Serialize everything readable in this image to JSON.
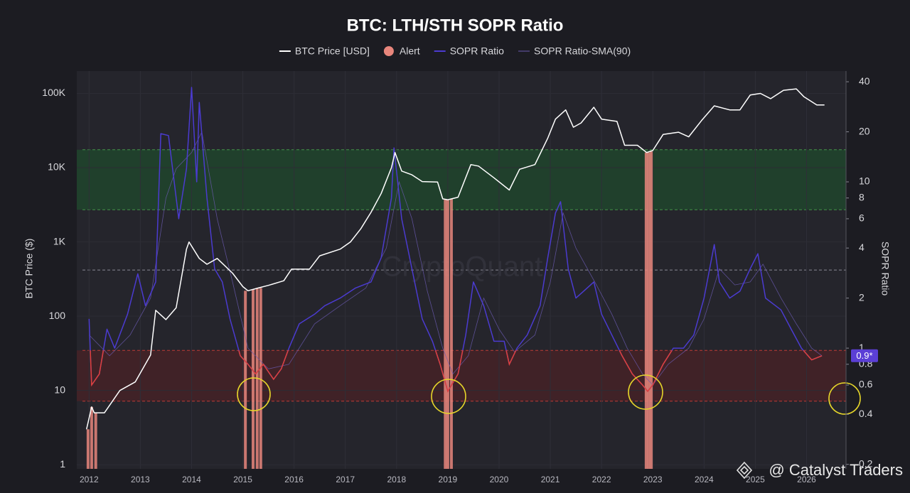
{
  "chart_data": {
    "type": "line",
    "title": "BTC: LTH/STH SOPR Ratio",
    "y_label": "BTC Price ($)",
    "y2_label": "SOPR Ratio",
    "watermark": "CryptoQuant",
    "credit": "@ Catalyst Traders",
    "legend": "top",
    "log_y": true,
    "log_y2": true,
    "grid": true,
    "xlim": [
      2011.76,
      2026.77
    ],
    "xticks": [
      2012,
      2013,
      2014,
      2015,
      2016,
      2017,
      2018,
      2019,
      2020,
      2021,
      2022,
      2023,
      2024,
      2025,
      2026
    ],
    "ylim": [
      0.88,
      200000
    ],
    "yticks": [
      1,
      10,
      100,
      {
        "value": 1000,
        "label": "1K"
      },
      {
        "value": 10000,
        "label": "10K"
      },
      {
        "value": 100000,
        "label": "100K"
      }
    ],
    "y2lim": [
      0.188,
      46.4
    ],
    "y2ticks": [
      0.2,
      0.4,
      0.6,
      0.8,
      1,
      2,
      4,
      6,
      8,
      10,
      20,
      40
    ],
    "current_marker": {
      "value": 0.9,
      "label": "0.9*",
      "color": "#5b3fd6"
    },
    "bands": [
      {
        "from": 6.8,
        "to": 15.6,
        "color": "#1f4a2c",
        "edge_color": "#4caf50"
      },
      {
        "from": 0.48,
        "to": 0.97,
        "color": "#4a2226",
        "edge_color": "#e0413a",
        "line_color": "#e0413a"
      }
    ],
    "reference_lines": [
      2.95
    ],
    "series": [
      {
        "name": "BTC Price [USD]",
        "color": "#ffffff",
        "style": "line",
        "x": [
          2011.95,
          2012.05,
          2012.1,
          2012.3,
          2012.6,
          2012.9,
          2013.2,
          2013.3,
          2013.5,
          2013.7,
          2013.9,
          2013.95,
          2014.15,
          2014.3,
          2014.5,
          2014.8,
          2015.0,
          2015.1,
          2015.3,
          2015.5,
          2015.8,
          2015.95,
          2016.3,
          2016.5,
          2016.9,
          2017.1,
          2017.3,
          2017.5,
          2017.7,
          2017.9,
          2017.97,
          2018.1,
          2018.3,
          2018.5,
          2018.8,
          2018.9,
          2019.0,
          2019.2,
          2019.45,
          2019.6,
          2019.9,
          2020.2,
          2020.4,
          2020.7,
          2020.95,
          2021.1,
          2021.3,
          2021.45,
          2021.6,
          2021.85,
          2022.0,
          2022.3,
          2022.45,
          2022.7,
          2022.88,
          2023.0,
          2023.2,
          2023.5,
          2023.7,
          2023.95,
          2024.2,
          2024.5,
          2024.7,
          2024.9,
          2025.1,
          2025.3,
          2025.55,
          2025.8,
          2025.95,
          2026.2,
          2026.35
        ],
        "values": [
          3,
          6,
          5,
          5,
          10,
          13,
          30,
          120,
          90,
          130,
          800,
          1000,
          600,
          500,
          600,
          380,
          250,
          220,
          240,
          260,
          300,
          430,
          430,
          650,
          800,
          1000,
          1500,
          2500,
          4500,
          10000,
          16000,
          9000,
          8000,
          6500,
          6400,
          3800,
          3700,
          4000,
          11000,
          10500,
          7300,
          5000,
          9500,
          11000,
          25000,
          45000,
          60000,
          35000,
          40000,
          65000,
          45000,
          42000,
          20000,
          20000,
          16000,
          17000,
          28000,
          30000,
          26000,
          43000,
          68000,
          60000,
          60000,
          95000,
          100000,
          85000,
          110000,
          115000,
          90000,
          70000,
          70000
        ]
      },
      {
        "name": "Alert",
        "color": "#e8867c",
        "style": "bar",
        "x": [
          2011.98,
          2012.05,
          2012.13,
          2015.05,
          2015.2,
          2015.28,
          2015.35,
          2018.95,
          2019.0,
          2019.07,
          2022.87,
          2022.92,
          2022.97
        ],
        "values": [
          3,
          6,
          5,
          220,
          230,
          240,
          240,
          3800,
          3700,
          3800,
          16000,
          16000,
          16500
        ]
      },
      {
        "name": "SOPR Ratio",
        "color": "#4b3bd0",
        "style": "line",
        "axis": "y2",
        "x": [
          2012.0,
          2012.05,
          2012.2,
          2012.35,
          2012.5,
          2012.75,
          2012.95,
          2013.1,
          2013.3,
          2013.4,
          2013.55,
          2013.75,
          2013.9,
          2014.0,
          2014.1,
          2014.15,
          2014.3,
          2014.45,
          2014.6,
          2014.75,
          2014.95,
          2015.1,
          2015.25,
          2015.4,
          2015.6,
          2015.75,
          2015.9,
          2016.1,
          2016.4,
          2016.6,
          2016.9,
          2017.2,
          2017.5,
          2017.7,
          2017.9,
          2017.95,
          2018.1,
          2018.3,
          2018.5,
          2018.7,
          2018.85,
          2019.0,
          2019.2,
          2019.35,
          2019.5,
          2019.7,
          2019.9,
          2020.1,
          2020.2,
          2020.35,
          2020.55,
          2020.8,
          2020.95,
          2021.1,
          2021.2,
          2021.35,
          2021.5,
          2021.65,
          2021.85,
          2022.0,
          2022.2,
          2022.4,
          2022.6,
          2022.8,
          2022.9,
          2023.0,
          2023.2,
          2023.4,
          2023.6,
          2023.8,
          2024.0,
          2024.2,
          2024.3,
          2024.5,
          2024.7,
          2024.9,
          2025.05,
          2025.2,
          2025.5,
          2025.7,
          2025.9,
          2026.1,
          2026.3
        ],
        "values": [
          1.5,
          0.6,
          0.7,
          1.3,
          1.0,
          1.6,
          2.8,
          1.8,
          2.5,
          19.5,
          19,
          6,
          12,
          37,
          10,
          30,
          8,
          3,
          2.5,
          1.5,
          0.9,
          0.8,
          0.7,
          0.8,
          0.65,
          0.75,
          1.0,
          1.4,
          1.6,
          1.8,
          2.0,
          2.3,
          2.5,
          3.5,
          8,
          16,
          6,
          3,
          1.5,
          1.1,
          0.8,
          0.55,
          0.7,
          1.2,
          2.5,
          1.8,
          1.1,
          1.1,
          0.8,
          1.0,
          1.2,
          1.8,
          3.5,
          6.5,
          7.6,
          3,
          2,
          2.2,
          2.5,
          1.6,
          1.2,
          0.9,
          0.7,
          0.6,
          0.55,
          0.6,
          0.8,
          1.0,
          1.0,
          1.2,
          2.0,
          4.2,
          2.5,
          2.0,
          2.2,
          3.0,
          3.7,
          2.0,
          1.7,
          1.3,
          1.0,
          0.85,
          0.9
        ]
      },
      {
        "name": "SOPR Ratio-SMA(90)",
        "color": "#6a5ab0",
        "style": "thin-line",
        "axis": "y2",
        "x": [
          2012.0,
          2012.4,
          2012.8,
          2013.2,
          2013.5,
          2013.7,
          2014.0,
          2014.2,
          2014.5,
          2014.8,
          2015.1,
          2015.5,
          2015.9,
          2016.4,
          2016.9,
          2017.4,
          2017.8,
          2018.05,
          2018.3,
          2018.6,
          2018.9,
          2019.1,
          2019.4,
          2019.7,
          2020.0,
          2020.3,
          2020.7,
          2021.0,
          2021.25,
          2021.5,
          2021.9,
          2022.2,
          2022.5,
          2022.8,
          2023.0,
          2023.3,
          2023.7,
          2024.0,
          2024.3,
          2024.6,
          2024.9,
          2025.15,
          2025.5,
          2025.8,
          2026.1,
          2026.3
        ],
        "values": [
          1.2,
          0.9,
          1.2,
          2.0,
          8,
          12,
          15,
          20,
          6,
          2.5,
          1.0,
          0.75,
          0.8,
          1.4,
          1.8,
          2.3,
          4,
          10,
          6,
          2.2,
          1.0,
          0.7,
          0.9,
          2.0,
          1.3,
          0.95,
          1.2,
          2.5,
          6.5,
          4,
          2.4,
          1.6,
          1.0,
          0.7,
          0.6,
          0.8,
          1.0,
          1.5,
          3.0,
          2.4,
          2.5,
          3.2,
          2.0,
          1.4,
          1.0,
          0.9
        ]
      }
    ]
  }
}
